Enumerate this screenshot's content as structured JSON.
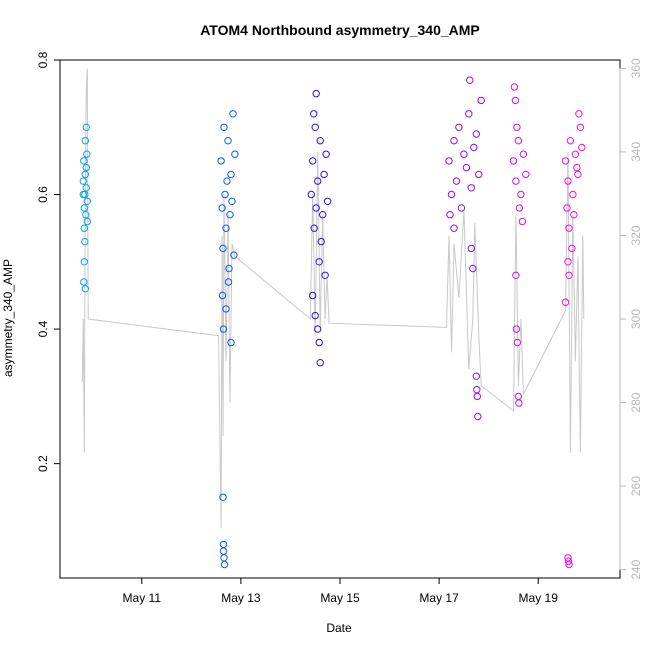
{
  "chart_data": {
    "type": "scatter",
    "title": "ATOM4 Northbound asymmetry_340_AMP",
    "xlabel": "Date",
    "ylabel": "asymmetry_340_AMP",
    "x_unit": "days since May 10 00:00",
    "xlim": [
      9.35,
      20.65
    ],
    "ylim": [
      0.03,
      0.8
    ],
    "y2lim": [
      238,
      362
    ],
    "grid": false,
    "x_ticks": [
      {
        "label": "May 11",
        "value": 11
      },
      {
        "label": "May 13",
        "value": 13
      },
      {
        "label": "May 15",
        "value": 15
      },
      {
        "label": "May 17",
        "value": 17
      },
      {
        "label": "May 19",
        "value": 19
      }
    ],
    "y_ticks": [
      {
        "label": "0.2",
        "value": 0.2
      },
      {
        "label": "0.4",
        "value": 0.4
      },
      {
        "label": "0.6",
        "value": 0.6
      },
      {
        "label": "0.8",
        "value": 0.8
      }
    ],
    "y2_ticks": [
      {
        "label": "240",
        "value": 240
      },
      {
        "label": "260",
        "value": 260
      },
      {
        "label": "280",
        "value": 280
      },
      {
        "label": "300",
        "value": 300
      },
      {
        "label": "320",
        "value": 320
      },
      {
        "label": "340",
        "value": 340
      },
      {
        "label": "360",
        "value": 360
      }
    ],
    "secondary_line_color": "#c8c8c8",
    "series": [
      {
        "color": "#0aa0f0",
        "points": [
          [
            9.82,
            0.62
          ],
          [
            9.83,
            0.65
          ],
          [
            9.84,
            0.58
          ],
          [
            9.85,
            0.6
          ],
          [
            9.86,
            0.63
          ],
          [
            9.87,
            0.57
          ],
          [
            9.88,
            0.61
          ],
          [
            9.89,
            0.66
          ],
          [
            9.9,
            0.59
          ],
          [
            9.84,
            0.55
          ],
          [
            9.86,
            0.68
          ],
          [
            9.88,
            0.7
          ],
          [
            9.85,
            0.53
          ],
          [
            9.83,
            0.47
          ],
          [
            9.86,
            0.46
          ],
          [
            9.84,
            0.5
          ],
          [
            9.88,
            0.64
          ],
          [
            9.9,
            0.56
          ],
          [
            9.82,
            0.6
          ]
        ]
      },
      {
        "color": "#0a5af5",
        "points": [
          [
            12.6,
            0.65
          ],
          [
            12.62,
            0.58
          ],
          [
            12.64,
            0.52
          ],
          [
            12.66,
            0.7
          ],
          [
            12.68,
            0.6
          ],
          [
            12.7,
            0.55
          ],
          [
            12.72,
            0.62
          ],
          [
            12.74,
            0.68
          ],
          [
            12.76,
            0.49
          ],
          [
            12.78,
            0.57
          ],
          [
            12.8,
            0.63
          ],
          [
            12.82,
            0.59
          ],
          [
            12.84,
            0.72
          ],
          [
            12.86,
            0.51
          ],
          [
            12.88,
            0.66
          ],
          [
            12.63,
            0.45
          ],
          [
            12.65,
            0.4
          ],
          [
            12.7,
            0.43
          ],
          [
            12.75,
            0.47
          ],
          [
            12.8,
            0.38
          ],
          [
            12.64,
            0.15
          ],
          [
            12.65,
            0.08
          ],
          [
            12.66,
            0.06
          ],
          [
            12.67,
            0.05
          ],
          [
            12.65,
            0.07
          ]
        ]
      },
      {
        "color": "#2a10f5",
        "points": [
          [
            14.42,
            0.6
          ],
          [
            14.45,
            0.65
          ],
          [
            14.48,
            0.55
          ],
          [
            14.5,
            0.7
          ],
          [
            14.52,
            0.58
          ],
          [
            14.55,
            0.62
          ],
          [
            14.58,
            0.5
          ],
          [
            14.6,
            0.68
          ],
          [
            14.62,
            0.53
          ],
          [
            14.65,
            0.57
          ],
          [
            14.68,
            0.63
          ],
          [
            14.7,
            0.48
          ],
          [
            14.72,
            0.66
          ],
          [
            14.75,
            0.59
          ],
          [
            14.45,
            0.45
          ],
          [
            14.5,
            0.42
          ],
          [
            14.55,
            0.4
          ],
          [
            14.58,
            0.38
          ],
          [
            14.6,
            0.35
          ],
          [
            14.52,
            0.75
          ],
          [
            14.47,
            0.72
          ]
        ]
      },
      {
        "color": "#8a10f5",
        "points": [
          [
            17.2,
            0.65
          ],
          [
            17.25,
            0.6
          ],
          [
            17.3,
            0.68
          ],
          [
            17.35,
            0.62
          ],
          [
            17.4,
            0.7
          ],
          [
            17.45,
            0.58
          ],
          [
            17.5,
            0.66
          ],
          [
            17.55,
            0.64
          ],
          [
            17.6,
            0.72
          ],
          [
            17.65,
            0.61
          ],
          [
            17.7,
            0.67
          ],
          [
            17.75,
            0.69
          ],
          [
            17.8,
            0.63
          ],
          [
            17.85,
            0.74
          ],
          [
            17.22,
            0.57
          ],
          [
            17.3,
            0.55
          ],
          [
            17.62,
            0.77
          ],
          [
            17.65,
            0.52
          ],
          [
            17.68,
            0.49
          ],
          [
            17.75,
            0.33
          ],
          [
            17.76,
            0.31
          ],
          [
            17.77,
            0.3
          ],
          [
            17.78,
            0.27
          ]
        ]
      },
      {
        "color": "#d010f0",
        "points": [
          [
            18.5,
            0.65
          ],
          [
            18.55,
            0.62
          ],
          [
            18.6,
            0.68
          ],
          [
            18.65,
            0.6
          ],
          [
            18.7,
            0.66
          ],
          [
            18.75,
            0.63
          ],
          [
            18.57,
            0.7
          ],
          [
            18.52,
            0.76
          ],
          [
            18.54,
            0.74
          ],
          [
            18.62,
            0.58
          ],
          [
            18.68,
            0.56
          ],
          [
            18.55,
            0.48
          ],
          [
            18.56,
            0.4
          ],
          [
            18.58,
            0.38
          ],
          [
            18.6,
            0.3
          ],
          [
            18.61,
            0.29
          ]
        ]
      },
      {
        "color": "#f010e0",
        "points": [
          [
            19.55,
            0.65
          ],
          [
            19.6,
            0.62
          ],
          [
            19.65,
            0.68
          ],
          [
            19.7,
            0.6
          ],
          [
            19.75,
            0.66
          ],
          [
            19.8,
            0.63
          ],
          [
            19.85,
            0.7
          ],
          [
            19.58,
            0.58
          ],
          [
            19.62,
            0.55
          ],
          [
            19.68,
            0.52
          ],
          [
            19.72,
            0.57
          ],
          [
            19.78,
            0.64
          ],
          [
            19.82,
            0.72
          ],
          [
            19.88,
            0.67
          ],
          [
            19.6,
            0.5
          ],
          [
            19.55,
            0.44
          ],
          [
            19.62,
            0.48
          ],
          [
            19.6,
            0.06
          ],
          [
            19.62,
            0.05
          ],
          [
            19.61,
            0.055
          ]
        ]
      }
    ],
    "secondary_line": [
      [
        9.8,
        285
      ],
      [
        9.82,
        300
      ],
      [
        9.84,
        268
      ],
      [
        9.86,
        330
      ],
      [
        9.88,
        355
      ],
      [
        9.9,
        360
      ],
      [
        9.92,
        300
      ],
      [
        12.55,
        296
      ],
      [
        12.6,
        250
      ],
      [
        12.62,
        320
      ],
      [
        12.64,
        272
      ],
      [
        12.66,
        330
      ],
      [
        12.7,
        290
      ],
      [
        12.74,
        325
      ],
      [
        12.78,
        280
      ],
      [
        12.82,
        318
      ],
      [
        12.88,
        315
      ],
      [
        14.4,
        300
      ],
      [
        14.45,
        330
      ],
      [
        14.5,
        296
      ],
      [
        14.55,
        340
      ],
      [
        14.6,
        297
      ],
      [
        14.65,
        325
      ],
      [
        14.7,
        300
      ],
      [
        14.74,
        310
      ],
      [
        14.78,
        299
      ],
      [
        17.15,
        298
      ],
      [
        17.2,
        320
      ],
      [
        17.25,
        292
      ],
      [
        17.3,
        318
      ],
      [
        17.4,
        305
      ],
      [
        17.5,
        326
      ],
      [
        17.6,
        288
      ],
      [
        17.68,
        300
      ],
      [
        17.72,
        323
      ],
      [
        17.8,
        296
      ],
      [
        17.85,
        284
      ],
      [
        18.5,
        278
      ],
      [
        18.55,
        325
      ],
      [
        18.6,
        284
      ],
      [
        18.65,
        300
      ],
      [
        18.7,
        282
      ],
      [
        19.55,
        302
      ],
      [
        19.6,
        340
      ],
      [
        19.65,
        268
      ],
      [
        19.7,
        325
      ],
      [
        19.75,
        290
      ],
      [
        19.8,
        315
      ],
      [
        19.85,
        268
      ],
      [
        19.9,
        320
      ],
      [
        19.92,
        300
      ]
    ]
  }
}
